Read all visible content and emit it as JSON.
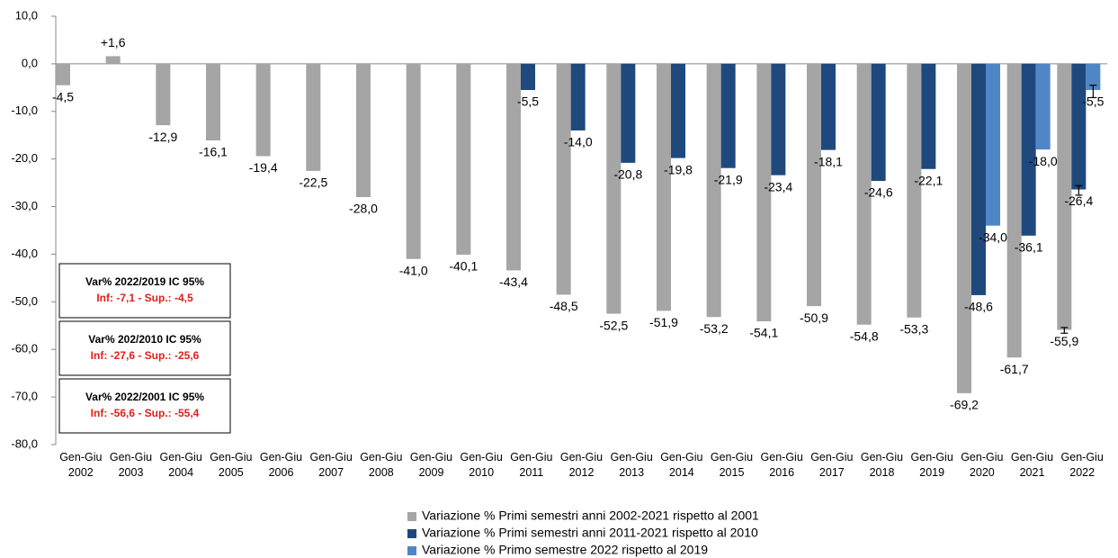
{
  "chart_data": {
    "type": "bar",
    "categories": [
      "Gen-Giu 2002",
      "Gen-Giu 2003",
      "Gen-Giu 2004",
      "Gen-Giu 2005",
      "Gen-Giu 2006",
      "Gen-Giu 2007",
      "Gen-Giu 2008",
      "Gen-Giu 2009",
      "Gen-Giu 2010",
      "Gen-Giu 2011",
      "Gen-Giu 2012",
      "Gen-Giu 2013",
      "Gen-Giu 2014",
      "Gen-Giu 2015",
      "Gen-Giu 2016",
      "Gen-Giu 2017",
      "Gen-Giu 2018",
      "Gen-Giu 2019",
      "Gen-Giu 2020",
      "Gen-Giu 2021",
      "Gen-Giu 2022"
    ],
    "series": [
      {
        "name": "Variazione % Primi semestri anni 2002-2021 rispetto al 2001",
        "color": "#a5a5a5",
        "values": [
          -4.5,
          1.6,
          -12.9,
          -16.1,
          -19.4,
          -22.5,
          -28.0,
          -41.0,
          -40.1,
          -43.4,
          -48.5,
          -52.5,
          -51.9,
          -53.2,
          -54.1,
          -50.9,
          -54.8,
          -53.3,
          -69.2,
          -61.7,
          -55.9
        ],
        "value_labels": [
          "-4,5",
          "+1,6",
          "-12,9",
          "-16,1",
          "-19,4",
          "-22,5",
          "-28,0",
          "-41,0",
          "-40,1",
          "-43,4",
          "-48,5",
          "-52,5",
          "-51,9",
          "-53,2",
          "-54,1",
          "-50,9",
          "-54,8",
          "-53,3",
          "-69,2",
          "-61,7",
          "-55,9"
        ]
      },
      {
        "name": "Variazione % Primi semestri anni 2011-2021 rispetto al 2010",
        "color": "#1f497d",
        "values": [
          null,
          null,
          null,
          null,
          null,
          null,
          null,
          null,
          null,
          -5.5,
          -14.0,
          -20.8,
          -19.8,
          -21.9,
          -23.4,
          -18.1,
          -24.6,
          -22.1,
          -48.6,
          -36.1,
          -26.4
        ],
        "value_labels": [
          null,
          null,
          null,
          null,
          null,
          null,
          null,
          null,
          null,
          "-5,5",
          "-14,0",
          "-20,8",
          "-19,8",
          "-21,9",
          "-23,4",
          "-18,1",
          "-24,6",
          "-22,1",
          "-48,6",
          "-36,1",
          "-26,4"
        ]
      },
      {
        "name": "Variazione % Primo semestre 2022 rispetto al 2019",
        "color": "#4f86c6",
        "values": [
          null,
          null,
          null,
          null,
          null,
          null,
          null,
          null,
          null,
          null,
          null,
          null,
          null,
          null,
          null,
          null,
          null,
          null,
          -34.0,
          -18.0,
          -5.5
        ],
        "value_labels": [
          null,
          null,
          null,
          null,
          null,
          null,
          null,
          null,
          null,
          null,
          null,
          null,
          null,
          null,
          null,
          null,
          null,
          null,
          "-34,0",
          "-18,0",
          "-5,5"
        ]
      }
    ],
    "error_bars": [
      {
        "series": 0,
        "index": 20,
        "low": -56.6,
        "high": -55.4
      },
      {
        "series": 1,
        "index": 20,
        "low": -27.6,
        "high": -25.6
      },
      {
        "series": 2,
        "index": 20,
        "low": -7.1,
        "high": -4.5
      }
    ],
    "annotations": [
      {
        "title": "Var% 2022/2019  IC 95%",
        "text": "Inf: -7,1 - Sup.: -4,5"
      },
      {
        "title": "Var% 202/2010  IC 95%",
        "text": "Inf: -27,6 - Sup.: -25,6"
      },
      {
        "title": "Var% 2022/2001  IC 95%",
        "text": "Inf: -56,6 - Sup.: -55,4"
      }
    ],
    "ylim": [
      -80,
      10
    ],
    "yticks": [
      {
        "value": 10,
        "label": "10,0"
      },
      {
        "value": 0,
        "label": "0,0"
      },
      {
        "value": -10,
        "label": "-10,0"
      },
      {
        "value": -20,
        "label": "-20,0"
      },
      {
        "value": -30,
        "label": "-30,0"
      },
      {
        "value": -40,
        "label": "-40,0"
      },
      {
        "value": -50,
        "label": "-50,0"
      },
      {
        "value": -60,
        "label": "-60,0"
      },
      {
        "value": -70,
        "label": "-70,0"
      },
      {
        "value": -80,
        "label": "-80,0"
      }
    ],
    "grid": false
  }
}
